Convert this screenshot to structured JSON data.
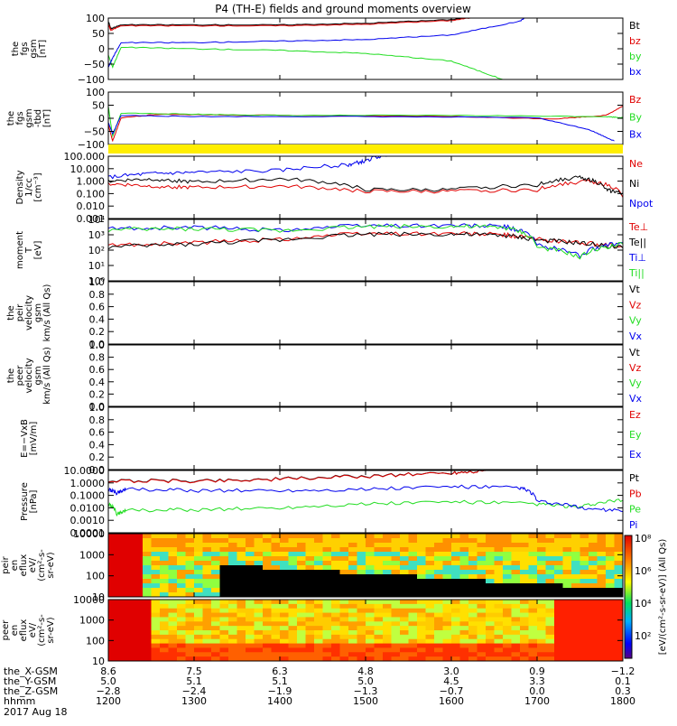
{
  "title": "P4 (TH-E) fields and ground moments overview",
  "colors": {
    "black": "#000000",
    "red": "#e00000",
    "green": "#22dd22",
    "blue": "#0000ee",
    "yellow": "#ffee00"
  },
  "chart_data": [
    {
      "id": "fgs",
      "type": "line",
      "ylabel_lines": [
        "the",
        "fgs",
        "gsm",
        "[nT]"
      ],
      "yticks": [
        "100",
        "50",
        "0",
        "−50",
        "−100"
      ],
      "ylim": [
        -100,
        100
      ],
      "series": [
        {
          "name": "Bt",
          "color": "black",
          "points": [
            [
              1200,
              90
            ],
            [
              1203,
              65
            ],
            [
              1215,
              78
            ],
            [
              1300,
              78
            ],
            [
              1400,
              78
            ],
            [
              1500,
              83
            ],
            [
              1600,
              95
            ],
            [
              1640,
              110
            ]
          ]
        },
        {
          "name": "bz",
          "color": "red",
          "points": [
            [
              1200,
              80
            ],
            [
              1203,
              60
            ],
            [
              1215,
              75
            ],
            [
              1300,
              75
            ],
            [
              1400,
              75
            ],
            [
              1500,
              80
            ],
            [
              1600,
              92
            ],
            [
              1640,
              108
            ]
          ]
        },
        {
          "name": "by",
          "color": "green",
          "points": [
            [
              1200,
              -20
            ],
            [
              1205,
              -60
            ],
            [
              1215,
              5
            ],
            [
              1300,
              0
            ],
            [
              1400,
              -5
            ],
            [
              1500,
              -15
            ],
            [
              1600,
              -40
            ],
            [
              1660,
              -100
            ]
          ]
        },
        {
          "name": "bx",
          "color": "blue",
          "points": [
            [
              1200,
              -60
            ],
            [
              1205,
              -30
            ],
            [
              1215,
              20
            ],
            [
              1300,
              20
            ],
            [
              1400,
              25
            ],
            [
              1500,
              30
            ],
            [
              1600,
              45
            ],
            [
              1680,
              90
            ],
            [
              1690,
              110
            ]
          ]
        }
      ]
    },
    {
      "id": "fgs-tbd",
      "type": "line",
      "ylabel_lines": [
        "the",
        "fgs",
        "gsm",
        "-tbd",
        "[nT]"
      ],
      "yticks": [
        "100",
        "50",
        "0",
        "−50",
        "−100"
      ],
      "ylim": [
        -125,
        100
      ],
      "series": [
        {
          "name": "Bz",
          "color": "red",
          "points": [
            [
              1200,
              -40
            ],
            [
              1205,
              -110
            ],
            [
              1215,
              -10
            ],
            [
              1260,
              5
            ],
            [
              1400,
              0
            ],
            [
              1600,
              -5
            ],
            [
              1720,
              -15
            ],
            [
              1780,
              0
            ],
            [
              1800,
              40
            ]
          ]
        },
        {
          "name": "By",
          "color": "green",
          "points": [
            [
              1200,
              40
            ],
            [
              1205,
              -90
            ],
            [
              1215,
              10
            ],
            [
              1300,
              5
            ],
            [
              1400,
              0
            ],
            [
              1600,
              0
            ],
            [
              1780,
              -5
            ],
            [
              1800,
              -10
            ]
          ]
        },
        {
          "name": "Bx",
          "color": "blue",
          "points": [
            [
              1200,
              -30
            ],
            [
              1205,
              -80
            ],
            [
              1215,
              0
            ],
            [
              1300,
              -5
            ],
            [
              1500,
              -5
            ],
            [
              1700,
              -10
            ],
            [
              1760,
              -60
            ],
            [
              1790,
              -110
            ]
          ]
        }
      ]
    },
    {
      "id": "density",
      "type": "line",
      "yscale": "log",
      "ylabel_lines": [
        "Density",
        "1/cc",
        "[cm⁻³]"
      ],
      "yticks": [
        "100.000",
        "10.000",
        "1.000",
        "0.100",
        "0.010",
        "0.001"
      ],
      "ylim": [
        0.001,
        100
      ],
      "series": [
        {
          "name": "Ne",
          "color": "red",
          "points": [
            [
              1200,
              0.6
            ],
            [
              1250,
              0.4
            ],
            [
              1300,
              0.3
            ],
            [
              1400,
              0.4
            ],
            [
              1500,
              0.15
            ],
            [
              1600,
              0.15
            ],
            [
              1700,
              0.2
            ],
            [
              1760,
              1.0
            ],
            [
              1800,
              0.05
            ]
          ]
        },
        {
          "name": "Ni",
          "color": "black",
          "points": [
            [
              1200,
              1.0
            ],
            [
              1250,
              1.5
            ],
            [
              1300,
              0.8
            ],
            [
              1400,
              1.5
            ],
            [
              1500,
              0.2
            ],
            [
              1600,
              0.2
            ],
            [
              1700,
              0.5
            ],
            [
              1750,
              2.0
            ],
            [
              1780,
              0.2
            ],
            [
              1800,
              0.1
            ]
          ]
        },
        {
          "name": "Npot",
          "color": "blue",
          "points": [
            [
              1200,
              2
            ],
            [
              1250,
              4
            ],
            [
              1300,
              5
            ],
            [
              1400,
              7
            ],
            [
              1480,
              20
            ],
            [
              1500,
              40
            ],
            [
              1530,
              150
            ]
          ]
        }
      ]
    },
    {
      "id": "moment-T",
      "type": "line",
      "yscale": "log",
      "ylabel_lines": [
        "moment",
        "T",
        "[eV]"
      ],
      "yticks": [
        "10⁴",
        "10³",
        "10²",
        "10¹",
        "10⁰"
      ],
      "ylim": [
        1,
        10000
      ],
      "series": [
        {
          "name": "Te⊥",
          "color": "red",
          "points": [
            [
              1200,
              200
            ],
            [
              1300,
              300
            ],
            [
              1400,
              500
            ],
            [
              1500,
              1200
            ],
            [
              1600,
              1200
            ],
            [
              1660,
              1000
            ],
            [
              1700,
              500
            ],
            [
              1750,
              300
            ],
            [
              1800,
              150
            ]
          ]
        },
        {
          "name": "Te||",
          "color": "black",
          "points": [
            [
              1200,
              150
            ],
            [
              1300,
              250
            ],
            [
              1400,
              450
            ],
            [
              1500,
              1100
            ],
            [
              1600,
              1100
            ],
            [
              1660,
              900
            ],
            [
              1700,
              450
            ],
            [
              1750,
              280
            ],
            [
              1800,
              140
            ]
          ]
        },
        {
          "name": "Ti⊥",
          "color": "blue",
          "points": [
            [
              1200,
              2500
            ],
            [
              1300,
              3000
            ],
            [
              1400,
              2000
            ],
            [
              1500,
              4000
            ],
            [
              1600,
              4000
            ],
            [
              1660,
              3500
            ],
            [
              1700,
              200
            ],
            [
              1750,
              40
            ],
            [
              1800,
              300
            ]
          ]
        },
        {
          "name": "Ti||",
          "color": "green",
          "points": [
            [
              1200,
              2000
            ],
            [
              1300,
              2500
            ],
            [
              1400,
              1800
            ],
            [
              1500,
              3500
            ],
            [
              1600,
              3500
            ],
            [
              1660,
              3000
            ],
            [
              1700,
              150
            ],
            [
              1750,
              30
            ],
            [
              1800,
              250
            ]
          ]
        }
      ]
    },
    {
      "id": "peir-velocity",
      "type": "line",
      "ylabel_lines": [
        "the",
        "peir",
        "velocity",
        "gsm",
        "km/s (All Qs)"
      ],
      "yticks": [
        "1.0",
        "0.8",
        "0.6",
        "0.4",
        "0.2",
        "0.0"
      ],
      "ylim": [
        0,
        1
      ],
      "legend": [
        "Vt",
        "Vz",
        "Vy",
        "Vx"
      ],
      "legend_colors": [
        "black",
        "red",
        "green",
        "blue"
      ],
      "series": []
    },
    {
      "id": "peer-velocity",
      "type": "line",
      "ylabel_lines": [
        "the",
        "peer",
        "velocity",
        "gsm",
        "km/s (All Qs)"
      ],
      "yticks": [
        "1.0",
        "0.8",
        "0.6",
        "0.4",
        "0.2",
        "0.0"
      ],
      "ylim": [
        0,
        1
      ],
      "legend": [
        "Vt",
        "Vz",
        "Vy",
        "Vx"
      ],
      "legend_colors": [
        "black",
        "red",
        "green",
        "blue"
      ],
      "series": []
    },
    {
      "id": "e-field",
      "type": "line",
      "ylabel_lines": [
        "E=−VxB",
        "[mV/m]"
      ],
      "yticks": [
        "1.0",
        "0.8",
        "0.6",
        "0.4",
        "0.2",
        "0.0"
      ],
      "ylim": [
        0,
        1
      ],
      "legend": [
        "Ez",
        "Ey",
        "Ex"
      ],
      "legend_colors": [
        "red",
        "green",
        "blue"
      ],
      "series": []
    },
    {
      "id": "pressure",
      "type": "line",
      "yscale": "log",
      "ylabel_lines": [
        "Pressure",
        "[nPa]"
      ],
      "yticks": [
        "10.0000",
        "1.0000",
        "0.1000",
        "0.0100",
        "0.0010",
        "0.0001"
      ],
      "ylim": [
        0.0001,
        10
      ],
      "series": [
        {
          "name": "Pt",
          "color": "black",
          "points": [
            [
              1200,
              1.5
            ],
            [
              1300,
              1.5
            ],
            [
              1400,
              2
            ],
            [
              1500,
              3.5
            ],
            [
              1600,
              6.5
            ],
            [
              1640,
              10
            ]
          ]
        },
        {
          "name": "Pb",
          "color": "red",
          "points": [
            [
              1200,
              1.4
            ],
            [
              1300,
              1.4
            ],
            [
              1400,
              1.9
            ],
            [
              1500,
              3.3
            ],
            [
              1600,
              6.3
            ],
            [
              1640,
              9.8
            ]
          ]
        },
        {
          "name": "Pe",
          "color": "green",
          "points": [
            [
              1200,
              0.02
            ],
            [
              1210,
              0.003
            ],
            [
              1220,
              0.006
            ],
            [
              1300,
              0.007
            ],
            [
              1400,
              0.01
            ],
            [
              1500,
              0.02
            ],
            [
              1600,
              0.03
            ],
            [
              1700,
              0.02
            ],
            [
              1750,
              0.01
            ],
            [
              1800,
              0.04
            ]
          ]
        },
        {
          "name": "Pi",
          "color": "blue",
          "points": [
            [
              1200,
              0.3
            ],
            [
              1210,
              0.15
            ],
            [
              1220,
              0.3
            ],
            [
              1300,
              0.25
            ],
            [
              1400,
              0.25
            ],
            [
              1500,
              0.3
            ],
            [
              1600,
              0.5
            ],
            [
              1680,
              0.4
            ],
            [
              1700,
              0.03
            ],
            [
              1750,
              0.01
            ],
            [
              1800,
              0.005
            ]
          ]
        }
      ]
    },
    {
      "id": "peir-spec",
      "type": "heatmap",
      "ylabel_lines": [
        "the",
        "peir",
        "en",
        "eflux",
        "eV/",
        "(cm²-s-",
        "sr-eV)"
      ],
      "yticks": [
        "10000",
        "1000",
        "100",
        "10"
      ],
      "ylim": [
        5,
        30000
      ]
    },
    {
      "id": "peer-spec",
      "type": "heatmap",
      "ylabel_lines": [
        "the",
        "peer",
        "en",
        "eflux",
        "eV/",
        "(cm²-s-",
        "sr-eV)"
      ],
      "yticks": [
        "10000",
        "1000",
        "100",
        "10"
      ],
      "ylim": [
        5,
        30000
      ]
    }
  ],
  "colorbar": {
    "ticks": [
      "10⁸",
      "10⁶",
      "10⁴",
      "10²"
    ],
    "label": "[eV/(cm²-s-sr-eV)] (All Qs)"
  },
  "ephemeris": {
    "rows": [
      {
        "label": "the_X-GSM",
        "values": [
          "8.6",
          "7.5",
          "6.3",
          "4.8",
          "3.0",
          "0.9",
          "−1.2"
        ]
      },
      {
        "label": "the_Y-GSM",
        "values": [
          "5.0",
          "5.1",
          "5.1",
          "5.0",
          "4.5",
          "3.3",
          "0.1"
        ]
      },
      {
        "label": "the_Z-GSM",
        "values": [
          "−2.8",
          "−2.4",
          "−1.9",
          "−1.3",
          "−0.7",
          "0.0",
          "0.3"
        ]
      },
      {
        "label": "hhmm",
        "values": [
          "1200",
          "1300",
          "1400",
          "1500",
          "1600",
          "1700",
          "1800"
        ]
      }
    ],
    "date": "2017 Aug 18"
  },
  "x_range": [
    1200,
    1800
  ]
}
